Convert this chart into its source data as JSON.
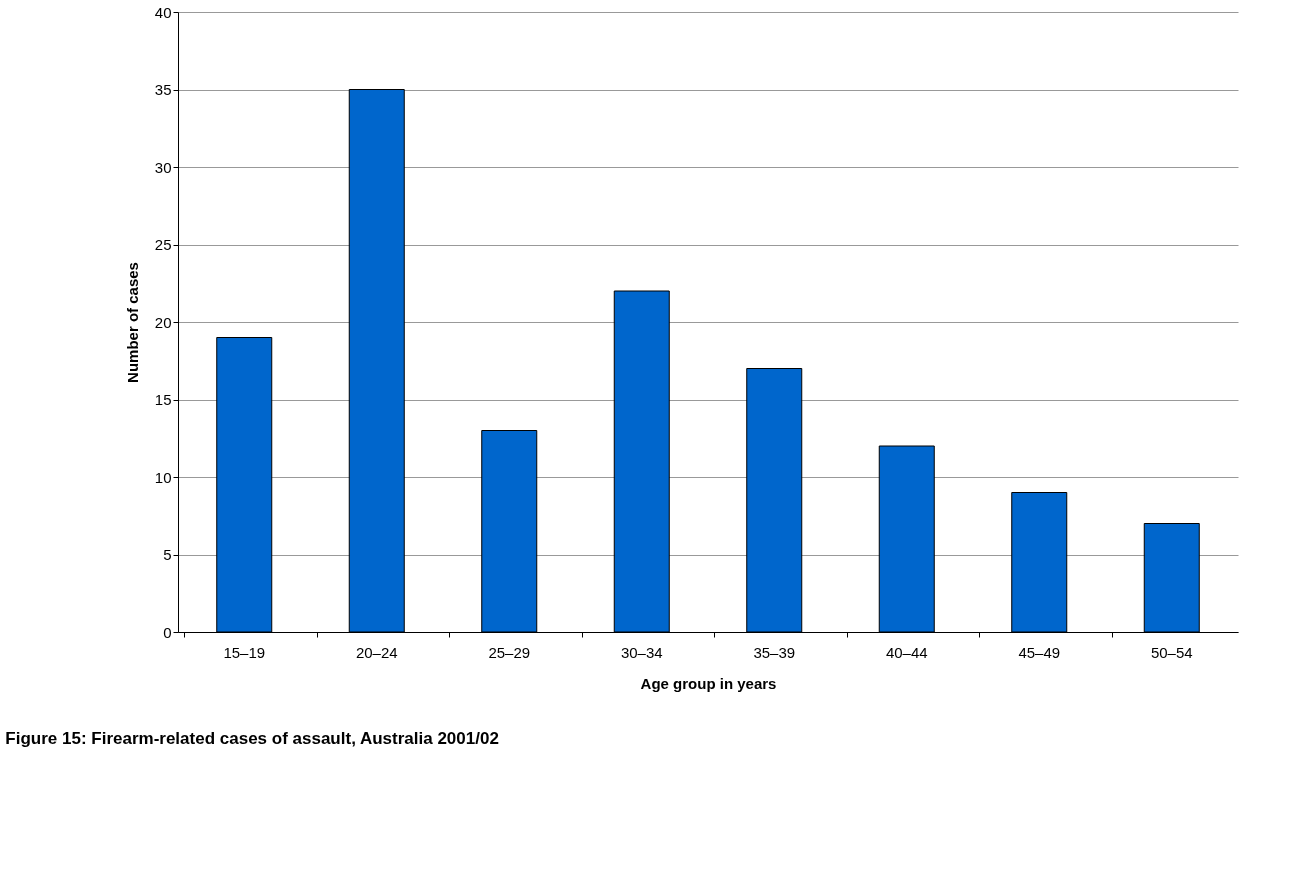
{
  "chart_data": {
    "type": "bar",
    "title": "Figure 15: Firearm-related cases of assault, Australia 2001/02",
    "xlabel": "Age group in years",
    "ylabel": "Number of cases",
    "categories": [
      "15–19",
      "20–24",
      "25–29",
      "30–34",
      "35–39",
      "40–44",
      "45–49",
      "50–54"
    ],
    "values": [
      19,
      35,
      13,
      22,
      17,
      12,
      9,
      7
    ],
    "color": "#0066cc",
    "ylim": [
      0,
      40
    ],
    "yticks": [
      0,
      5,
      10,
      15,
      20,
      25,
      30,
      35,
      40
    ],
    "grid": "y"
  }
}
